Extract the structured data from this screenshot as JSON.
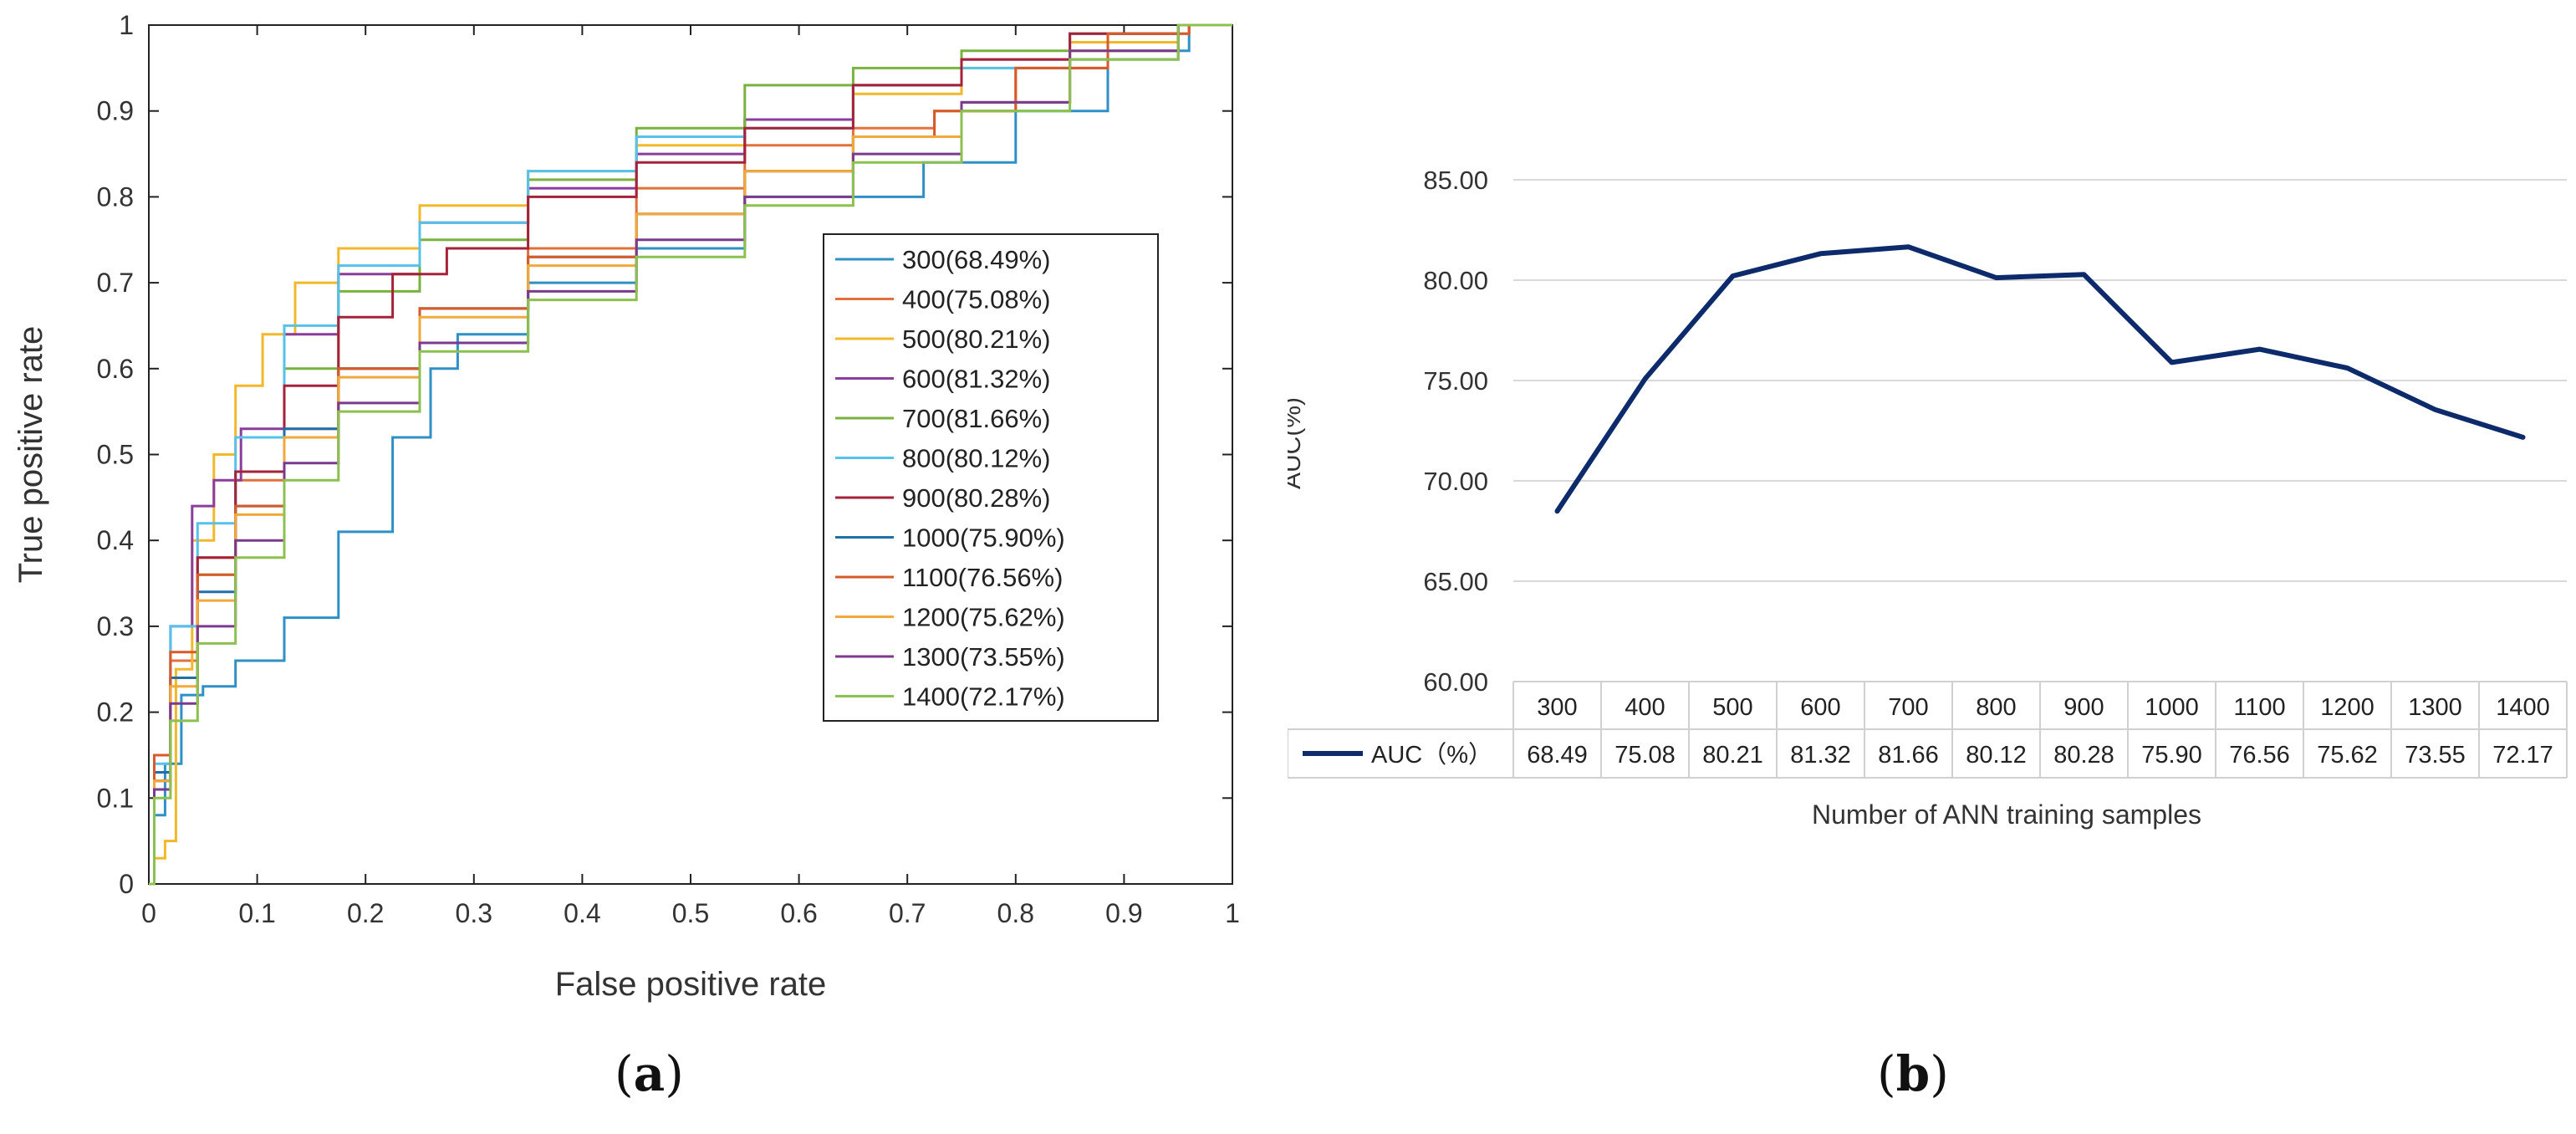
{
  "panels": {
    "a": {
      "open": "(",
      "letter": "a",
      "close": ")"
    },
    "b": {
      "open": "(",
      "letter": "b",
      "close": ")"
    }
  },
  "chart_data": [
    {
      "type": "line",
      "title": "",
      "xlabel": "False positive rate",
      "ylabel": "True positive rate",
      "xlim": [
        0,
        1
      ],
      "ylim": [
        0,
        1
      ],
      "xticks": [
        "0",
        "0.1",
        "0.2",
        "0.3",
        "0.4",
        "0.5",
        "0.6",
        "0.7",
        "0.8",
        "0.9",
        "1"
      ],
      "yticks": [
        "0",
        "0.1",
        "0.2",
        "0.3",
        "0.4",
        "0.5",
        "0.6",
        "0.7",
        "0.8",
        "0.9",
        "1"
      ],
      "grid": false,
      "legend_position": "center-right",
      "series": [
        {
          "name": "300(68.49%)",
          "color": "#2f8fc7",
          "points": [
            [
              0,
              0
            ],
            [
              0.01,
              0.08
            ],
            [
              0.02,
              0.14
            ],
            [
              0.04,
              0.22
            ],
            [
              0.06,
              0.23
            ],
            [
              0.1,
              0.26
            ],
            [
              0.15,
              0.31
            ],
            [
              0.2,
              0.41
            ],
            [
              0.25,
              0.52
            ],
            [
              0.27,
              0.6
            ],
            [
              0.3,
              0.64
            ],
            [
              0.4,
              0.7
            ],
            [
              0.5,
              0.74
            ],
            [
              0.6,
              0.8
            ],
            [
              0.68,
              0.8
            ],
            [
              0.75,
              0.84
            ],
            [
              0.85,
              0.9
            ],
            [
              0.92,
              0.97
            ],
            [
              1,
              1
            ]
          ]
        },
        {
          "name": "400(75.08%)",
          "color": "#e2703a",
          "points": [
            [
              0,
              0
            ],
            [
              0.01,
              0.15
            ],
            [
              0.03,
              0.26
            ],
            [
              0.06,
              0.38
            ],
            [
              0.1,
              0.47
            ],
            [
              0.15,
              0.53
            ],
            [
              0.2,
              0.6
            ],
            [
              0.3,
              0.67
            ],
            [
              0.4,
              0.74
            ],
            [
              0.5,
              0.81
            ],
            [
              0.6,
              0.86
            ],
            [
              0.7,
              0.88
            ],
            [
              0.75,
              0.9
            ],
            [
              0.85,
              0.95
            ],
            [
              0.92,
              0.99
            ],
            [
              1,
              1
            ]
          ]
        },
        {
          "name": "500(80.21%)",
          "color": "#f3b82a",
          "points": [
            [
              0,
              0
            ],
            [
              0.01,
              0.03
            ],
            [
              0.02,
              0.05
            ],
            [
              0.03,
              0.25
            ],
            [
              0.05,
              0.4
            ],
            [
              0.07,
              0.5
            ],
            [
              0.09,
              0.58
            ],
            [
              0.12,
              0.64
            ],
            [
              0.15,
              0.7
            ],
            [
              0.2,
              0.74
            ],
            [
              0.3,
              0.79
            ],
            [
              0.4,
              0.83
            ],
            [
              0.5,
              0.86
            ],
            [
              0.6,
              0.89
            ],
            [
              0.7,
              0.92
            ],
            [
              0.8,
              0.95
            ],
            [
              0.9,
              0.98
            ],
            [
              1,
              1
            ]
          ]
        },
        {
          "name": "600(81.32%)",
          "color": "#8a3d9c",
          "points": [
            [
              0,
              0
            ],
            [
              0.01,
              0.15
            ],
            [
              0.03,
              0.3
            ],
            [
              0.05,
              0.44
            ],
            [
              0.07,
              0.47
            ],
            [
              0.1,
              0.53
            ],
            [
              0.15,
              0.64
            ],
            [
              0.2,
              0.71
            ],
            [
              0.3,
              0.77
            ],
            [
              0.4,
              0.81
            ],
            [
              0.5,
              0.85
            ],
            [
              0.6,
              0.89
            ],
            [
              0.7,
              0.93
            ],
            [
              0.8,
              0.96
            ],
            [
              0.9,
              0.99
            ],
            [
              1,
              1
            ]
          ]
        },
        {
          "name": "700(81.66%)",
          "color": "#79b23e",
          "points": [
            [
              0,
              0
            ],
            [
              0.01,
              0.12
            ],
            [
              0.03,
              0.24
            ],
            [
              0.06,
              0.36
            ],
            [
              0.1,
              0.48
            ],
            [
              0.15,
              0.6
            ],
            [
              0.2,
              0.69
            ],
            [
              0.3,
              0.75
            ],
            [
              0.4,
              0.82
            ],
            [
              0.5,
              0.88
            ],
            [
              0.6,
              0.93
            ],
            [
              0.7,
              0.95
            ],
            [
              0.8,
              0.97
            ],
            [
              0.9,
              0.99
            ],
            [
              1,
              1
            ]
          ]
        },
        {
          "name": "800(80.12%)",
          "color": "#56c1ea",
          "points": [
            [
              0,
              0
            ],
            [
              0.01,
              0.14
            ],
            [
              0.03,
              0.3
            ],
            [
              0.06,
              0.42
            ],
            [
              0.1,
              0.52
            ],
            [
              0.15,
              0.65
            ],
            [
              0.2,
              0.72
            ],
            [
              0.3,
              0.77
            ],
            [
              0.4,
              0.83
            ],
            [
              0.5,
              0.87
            ],
            [
              0.6,
              0.88
            ],
            [
              0.7,
              0.93
            ],
            [
              0.8,
              0.95
            ],
            [
              0.9,
              0.99
            ],
            [
              1,
              1
            ]
          ]
        },
        {
          "name": "900(80.28%)",
          "color": "#a6223a",
          "points": [
            [
              0,
              0
            ],
            [
              0.01,
              0.12
            ],
            [
              0.03,
              0.24
            ],
            [
              0.06,
              0.38
            ],
            [
              0.1,
              0.48
            ],
            [
              0.15,
              0.58
            ],
            [
              0.2,
              0.66
            ],
            [
              0.25,
              0.71
            ],
            [
              0.3,
              0.74
            ],
            [
              0.4,
              0.8
            ],
            [
              0.5,
              0.84
            ],
            [
              0.6,
              0.88
            ],
            [
              0.7,
              0.93
            ],
            [
              0.8,
              0.96
            ],
            [
              0.9,
              0.99
            ],
            [
              1,
              1
            ]
          ]
        },
        {
          "name": "1000(75.90%)",
          "color": "#1f6fa8",
          "points": [
            [
              0,
              0
            ],
            [
              0.01,
              0.13
            ],
            [
              0.03,
              0.24
            ],
            [
              0.06,
              0.34
            ],
            [
              0.1,
              0.44
            ],
            [
              0.15,
              0.53
            ],
            [
              0.2,
              0.6
            ],
            [
              0.3,
              0.67
            ],
            [
              0.4,
              0.73
            ],
            [
              0.5,
              0.78
            ],
            [
              0.6,
              0.83
            ],
            [
              0.7,
              0.87
            ],
            [
              0.8,
              0.91
            ],
            [
              0.9,
              0.96
            ],
            [
              1,
              1
            ]
          ]
        },
        {
          "name": "1100(76.56%)",
          "color": "#d65a2a",
          "points": [
            [
              0,
              0
            ],
            [
              0.01,
              0.15
            ],
            [
              0.03,
              0.27
            ],
            [
              0.06,
              0.36
            ],
            [
              0.1,
              0.44
            ],
            [
              0.15,
              0.52
            ],
            [
              0.2,
              0.6
            ],
            [
              0.3,
              0.67
            ],
            [
              0.4,
              0.73
            ],
            [
              0.5,
              0.78
            ],
            [
              0.6,
              0.83
            ],
            [
              0.7,
              0.87
            ],
            [
              0.75,
              0.9
            ],
            [
              0.85,
              0.95
            ],
            [
              0.92,
              0.99
            ],
            [
              1,
              1
            ]
          ]
        },
        {
          "name": "1200(75.62%)",
          "color": "#f0a93a",
          "points": [
            [
              0,
              0
            ],
            [
              0.01,
              0.12
            ],
            [
              0.03,
              0.23
            ],
            [
              0.06,
              0.33
            ],
            [
              0.1,
              0.43
            ],
            [
              0.15,
              0.52
            ],
            [
              0.2,
              0.59
            ],
            [
              0.3,
              0.66
            ],
            [
              0.4,
              0.72
            ],
            [
              0.5,
              0.78
            ],
            [
              0.6,
              0.83
            ],
            [
              0.7,
              0.87
            ],
            [
              0.8,
              0.91
            ],
            [
              0.9,
              0.97
            ],
            [
              1,
              1
            ]
          ]
        },
        {
          "name": "1300(73.55%)",
          "color": "#7a3b8f",
          "points": [
            [
              0,
              0
            ],
            [
              0.01,
              0.11
            ],
            [
              0.03,
              0.21
            ],
            [
              0.06,
              0.3
            ],
            [
              0.1,
              0.4
            ],
            [
              0.15,
              0.49
            ],
            [
              0.2,
              0.56
            ],
            [
              0.3,
              0.63
            ],
            [
              0.4,
              0.69
            ],
            [
              0.5,
              0.75
            ],
            [
              0.6,
              0.8
            ],
            [
              0.7,
              0.85
            ],
            [
              0.8,
              0.91
            ],
            [
              0.9,
              0.97
            ],
            [
              1,
              1
            ]
          ]
        },
        {
          "name": "1400(72.17%)",
          "color": "#8cc04f",
          "points": [
            [
              0,
              0
            ],
            [
              0.01,
              0.1
            ],
            [
              0.03,
              0.19
            ],
            [
              0.06,
              0.28
            ],
            [
              0.1,
              0.38
            ],
            [
              0.15,
              0.47
            ],
            [
              0.2,
              0.55
            ],
            [
              0.3,
              0.62
            ],
            [
              0.4,
              0.68
            ],
            [
              0.5,
              0.73
            ],
            [
              0.6,
              0.79
            ],
            [
              0.7,
              0.84
            ],
            [
              0.8,
              0.9
            ],
            [
              0.9,
              0.96
            ],
            [
              1,
              1
            ]
          ]
        }
      ]
    },
    {
      "type": "line",
      "title": "",
      "xlabel": "Number of ANN training samples",
      "ylabel": "AUC(%)",
      "ylim": [
        60,
        85
      ],
      "yticks": [
        "60.00",
        "65.00",
        "70.00",
        "75.00",
        "80.00",
        "85.00"
      ],
      "grid": true,
      "legend_position": "bottom-table",
      "categories": [
        "300",
        "400",
        "500",
        "600",
        "700",
        "800",
        "900",
        "1000",
        "1100",
        "1200",
        "1300",
        "1400"
      ],
      "series": [
        {
          "name": "AUC（%）",
          "color": "#0d2a6b",
          "values": [
            68.49,
            75.08,
            80.21,
            81.32,
            81.66,
            80.12,
            80.28,
            75.9,
            76.56,
            75.62,
            73.55,
            72.17
          ],
          "value_labels": [
            "68.49",
            "75.08",
            "80.21",
            "81.32",
            "81.66",
            "80.12",
            "80.28",
            "75.90",
            "76.56",
            "75.62",
            "73.55",
            "72.17"
          ]
        }
      ]
    }
  ]
}
